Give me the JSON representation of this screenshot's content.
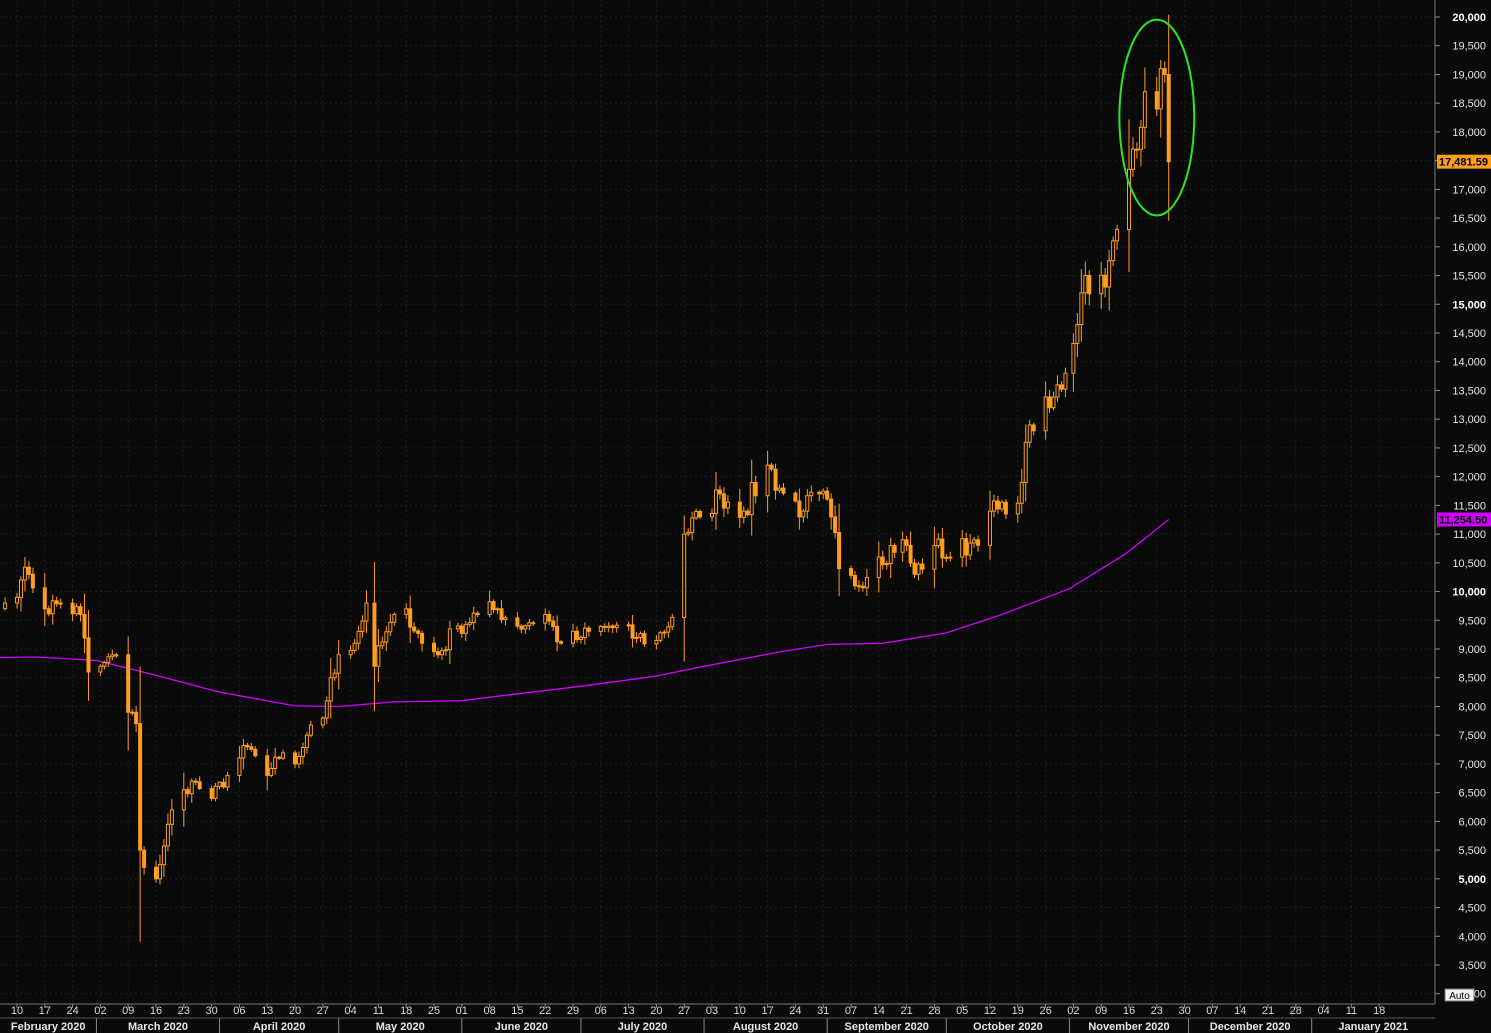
{
  "chart_data": {
    "type": "candlestick",
    "title": "",
    "y_axis": {
      "position": "right",
      "range": [
        2800,
        20150
      ],
      "tick_values": [
        3000,
        3500,
        4000,
        4500,
        5000,
        5500,
        6000,
        6500,
        7000,
        7500,
        8000,
        8500,
        9000,
        9500,
        10000,
        10500,
        11000,
        11500,
        12000,
        12500,
        13000,
        13500,
        14000,
        14500,
        15000,
        15500,
        16000,
        16500,
        17000,
        17500,
        18000,
        18500,
        19000,
        19500,
        20000
      ],
      "tick_labels": [
        "3,000",
        "3,500",
        "4,000",
        "4,500",
        "5,000",
        "5,500",
        "6,000",
        "6,500",
        "7,000",
        "7,500",
        "8,000",
        "8,500",
        "9,000",
        "9,500",
        "10,000",
        "10,500",
        "11,000",
        "11,500",
        "12,000",
        "12,500",
        "13,000",
        "13,500",
        "14,000",
        "14,500",
        "15,000",
        "15,500",
        "16,000",
        "16,500",
        "17,000",
        "17,500",
        "18,000",
        "18,500",
        "19,000",
        "19,500",
        "20,000"
      ],
      "bold_tick_values": [
        5000,
        10000,
        15000,
        20000
      ]
    },
    "x_axis": {
      "day_ticks": [
        {
          "date": "2020-02-10",
          "label": "10"
        },
        {
          "date": "2020-02-17",
          "label": "17"
        },
        {
          "date": "2020-02-24",
          "label": "24"
        },
        {
          "date": "2020-03-02",
          "label": "02"
        },
        {
          "date": "2020-03-09",
          "label": "09"
        },
        {
          "date": "2020-03-16",
          "label": "16"
        },
        {
          "date": "2020-03-23",
          "label": "23"
        },
        {
          "date": "2020-03-30",
          "label": "30"
        },
        {
          "date": "2020-04-06",
          "label": "06"
        },
        {
          "date": "2020-04-13",
          "label": "13"
        },
        {
          "date": "2020-04-20",
          "label": "20"
        },
        {
          "date": "2020-04-27",
          "label": "27"
        },
        {
          "date": "2020-05-04",
          "label": "04"
        },
        {
          "date": "2020-05-11",
          "label": "11"
        },
        {
          "date": "2020-05-18",
          "label": "18"
        },
        {
          "date": "2020-05-25",
          "label": "25"
        },
        {
          "date": "2020-06-01",
          "label": "01"
        },
        {
          "date": "2020-06-08",
          "label": "08"
        },
        {
          "date": "2020-06-15",
          "label": "15"
        },
        {
          "date": "2020-06-22",
          "label": "22"
        },
        {
          "date": "2020-06-29",
          "label": "29"
        },
        {
          "date": "2020-07-06",
          "label": "06"
        },
        {
          "date": "2020-07-13",
          "label": "13"
        },
        {
          "date": "2020-07-20",
          "label": "20"
        },
        {
          "date": "2020-07-27",
          "label": "27"
        },
        {
          "date": "2020-08-03",
          "label": "03"
        },
        {
          "date": "2020-08-10",
          "label": "10"
        },
        {
          "date": "2020-08-17",
          "label": "17"
        },
        {
          "date": "2020-08-24",
          "label": "24"
        },
        {
          "date": "2020-08-31",
          "label": "31"
        },
        {
          "date": "2020-09-07",
          "label": "07"
        },
        {
          "date": "2020-09-14",
          "label": "14"
        },
        {
          "date": "2020-09-21",
          "label": "21"
        },
        {
          "date": "2020-09-28",
          "label": "28"
        },
        {
          "date": "2020-10-05",
          "label": "05"
        },
        {
          "date": "2020-10-12",
          "label": "12"
        },
        {
          "date": "2020-10-19",
          "label": "19"
        },
        {
          "date": "2020-10-26",
          "label": "26"
        },
        {
          "date": "2020-11-02",
          "label": "02"
        },
        {
          "date": "2020-11-09",
          "label": "09"
        },
        {
          "date": "2020-11-16",
          "label": "16"
        },
        {
          "date": "2020-11-23",
          "label": "23"
        },
        {
          "date": "2020-11-30",
          "label": "30"
        },
        {
          "date": "2020-12-07",
          "label": "07"
        },
        {
          "date": "2020-12-14",
          "label": "14"
        },
        {
          "date": "2020-12-21",
          "label": "21"
        },
        {
          "date": "2020-12-28",
          "label": "28"
        },
        {
          "date": "2021-01-04",
          "label": "04"
        },
        {
          "date": "2021-01-11",
          "label": "11"
        },
        {
          "date": "2021-01-18",
          "label": "18"
        }
      ],
      "month_labels": [
        {
          "label": "February 2020",
          "start": "2020-02-01",
          "end": "2020-03-01"
        },
        {
          "label": "March 2020",
          "start": "2020-03-01",
          "end": "2020-04-01"
        },
        {
          "label": "April 2020",
          "start": "2020-04-01",
          "end": "2020-05-01"
        },
        {
          "label": "May 2020",
          "start": "2020-05-01",
          "end": "2020-06-01"
        },
        {
          "label": "June 2020",
          "start": "2020-06-01",
          "end": "2020-07-01"
        },
        {
          "label": "July 2020",
          "start": "2020-07-01",
          "end": "2020-08-01"
        },
        {
          "label": "August 2020",
          "start": "2020-08-01",
          "end": "2020-09-01"
        },
        {
          "label": "September 2020",
          "start": "2020-09-01",
          "end": "2020-10-01"
        },
        {
          "label": "October 2020",
          "start": "2020-10-01",
          "end": "2020-11-01"
        },
        {
          "label": "November 2020",
          "start": "2020-11-01",
          "end": "2020-12-01"
        },
        {
          "label": "December 2020",
          "start": "2020-12-01",
          "end": "2021-01-01"
        },
        {
          "label": "January 2021",
          "start": "2021-01-01",
          "end": "2021-02-01"
        }
      ],
      "auto_label": "Auto"
    },
    "price_series": {
      "color": "#ff9d1e",
      "anchor_closes": [
        [
          "2020-02-07",
          9800
        ],
        [
          "2020-02-11",
          10200
        ],
        [
          "2020-02-13",
          10300
        ],
        [
          "2020-02-17",
          9700
        ],
        [
          "2020-02-21",
          9800
        ],
        [
          "2020-02-26",
          9600
        ],
        [
          "2020-02-28",
          8600
        ],
        [
          "2020-03-02",
          8700
        ],
        [
          "2020-03-06",
          8900
        ],
        [
          "2020-03-09",
          7900
        ],
        [
          "2020-03-11",
          7700
        ],
        [
          "2020-03-12",
          5500
        ],
        [
          "2020-03-13",
          5200
        ],
        [
          "2020-03-16",
          5000
        ],
        [
          "2020-03-20",
          6200
        ],
        [
          "2020-03-25",
          6700
        ],
        [
          "2020-03-30",
          6400
        ],
        [
          "2020-04-03",
          6800
        ],
        [
          "2020-04-08",
          7300
        ],
        [
          "2020-04-13",
          6800
        ],
        [
          "2020-04-16",
          7100
        ],
        [
          "2020-04-20",
          7000
        ],
        [
          "2020-04-23",
          7500
        ],
        [
          "2020-04-27",
          7800
        ],
        [
          "2020-04-29",
          8500
        ],
        [
          "2020-05-01",
          8900
        ],
        [
          "2020-05-05",
          9100
        ],
        [
          "2020-05-08",
          9800
        ],
        [
          "2020-05-10",
          8700
        ],
        [
          "2020-05-13",
          9300
        ],
        [
          "2020-05-18",
          9700
        ],
        [
          "2020-05-22",
          9100
        ],
        [
          "2020-05-26",
          8900
        ],
        [
          "2020-05-31",
          9400
        ],
        [
          "2020-06-05",
          9600
        ],
        [
          "2020-06-10",
          9700
        ],
        [
          "2020-06-15",
          9400
        ],
        [
          "2020-06-22",
          9600
        ],
        [
          "2020-06-26",
          9100
        ],
        [
          "2020-07-01",
          9200
        ],
        [
          "2020-07-08",
          9400
        ],
        [
          "2020-07-15",
          9200
        ],
        [
          "2020-07-20",
          9150
        ],
        [
          "2020-07-24",
          9550
        ],
        [
          "2020-07-27",
          11000
        ],
        [
          "2020-07-31",
          11300
        ],
        [
          "2020-08-05",
          11700
        ],
        [
          "2020-08-11",
          11400
        ],
        [
          "2020-08-17",
          12200
        ],
        [
          "2020-08-20",
          11800
        ],
        [
          "2020-08-26",
          11400
        ],
        [
          "2020-08-30",
          11700
        ],
        [
          "2020-09-02",
          11300
        ],
        [
          "2020-09-04",
          10400
        ],
        [
          "2020-09-08",
          10100
        ],
        [
          "2020-09-14",
          10600
        ],
        [
          "2020-09-20",
          10900
        ],
        [
          "2020-09-23",
          10300
        ],
        [
          "2020-09-28",
          10800
        ],
        [
          "2020-10-02",
          10600
        ],
        [
          "2020-10-08",
          10900
        ],
        [
          "2020-10-12",
          11400
        ],
        [
          "2020-10-16",
          11350
        ],
        [
          "2020-10-20",
          11900
        ],
        [
          "2020-10-22",
          12900
        ],
        [
          "2020-10-27",
          13200
        ],
        [
          "2020-10-31",
          13800
        ],
        [
          "2020-11-05",
          15500
        ],
        [
          "2020-11-10",
          15300
        ],
        [
          "2020-11-13",
          16300
        ],
        [
          "2020-11-17",
          17700
        ],
        [
          "2020-11-20",
          18700
        ],
        [
          "2020-11-23",
          18400
        ],
        [
          "2020-11-24",
          19100
        ],
        [
          "2020-11-25",
          19000
        ],
        [
          "2020-11-26",
          17481.59
        ]
      ]
    },
    "moving_average": {
      "color": "#d000ff",
      "points": [
        [
          "2020-01-30",
          8850
        ],
        [
          "2020-02-15",
          8860
        ],
        [
          "2020-03-01",
          8800
        ],
        [
          "2020-03-15",
          8560
        ],
        [
          "2020-04-01",
          8250
        ],
        [
          "2020-04-20",
          8010
        ],
        [
          "2020-05-01",
          8000
        ],
        [
          "2020-05-15",
          8080
        ],
        [
          "2020-06-01",
          8100
        ],
        [
          "2020-06-15",
          8220
        ],
        [
          "2020-07-01",
          8350
        ],
        [
          "2020-07-20",
          8530
        ],
        [
          "2020-08-01",
          8700
        ],
        [
          "2020-08-20",
          8950
        ],
        [
          "2020-09-01",
          9080
        ],
        [
          "2020-09-15",
          9100
        ],
        [
          "2020-10-01",
          9280
        ],
        [
          "2020-10-15",
          9600
        ],
        [
          "2020-11-01",
          10050
        ],
        [
          "2020-11-15",
          10650
        ],
        [
          "2020-11-26",
          11254.5
        ]
      ]
    },
    "last_price": {
      "value": 17481.59,
      "label": "17,481.59",
      "color": "#ff9d1e"
    },
    "ma_last": {
      "value": 11254.5,
      "label": "11,254.50",
      "color": "#d000ff"
    },
    "highlight_ellipse": {
      "center_date": "2020-11-23",
      "center_value": 18250,
      "half_width_days": 6.5,
      "half_height_value": 1550,
      "color": "#28e628"
    }
  }
}
